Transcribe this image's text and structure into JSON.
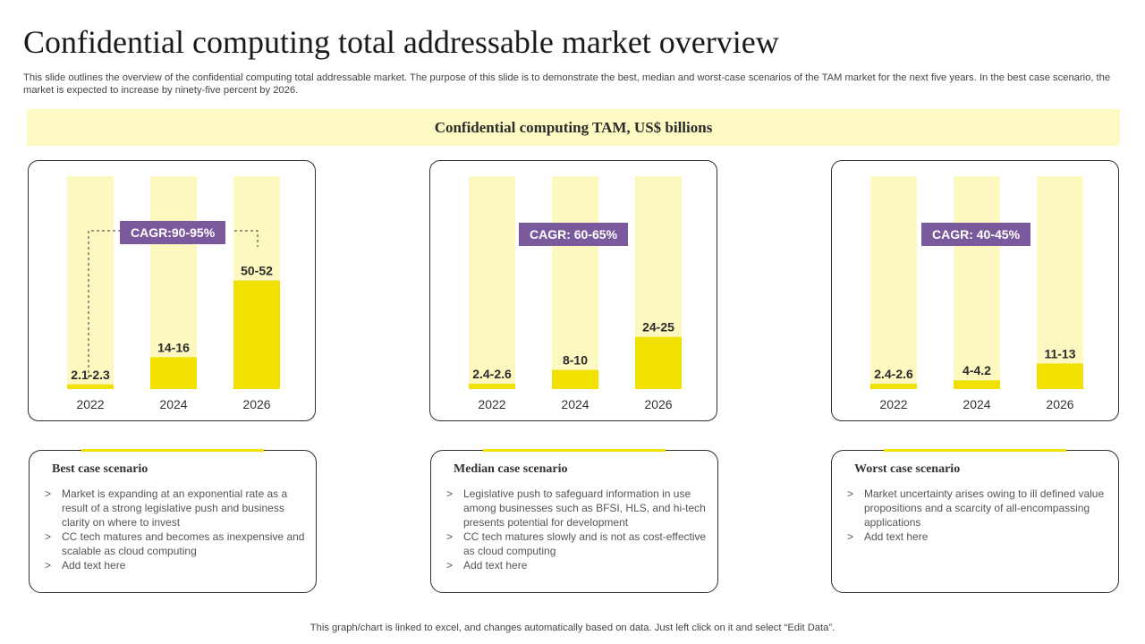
{
  "title": "Confidential computing total addressable market overview",
  "subtitle": "This slide outlines the overview of the confidential computing total addressable market. The purpose of this slide is to demonstrate the best, median and worst-case scenarios of the TAM  market for the next five years. In the best case scenario, the market is expected to increase by ninety-five percent by 2026.",
  "band_title": "Confidential computing TAM, US$ billions",
  "colors": {
    "accent": "#f0e100",
    "bar_bg": "#fdf8c0",
    "band": "#fdfac3",
    "cagr": "#7a5a9c"
  },
  "chart_data": [
    {
      "type": "bar",
      "title": "Best case scenario",
      "categories": [
        "2022",
        "2024",
        "2026"
      ],
      "values": [
        2.2,
        15,
        51
      ],
      "labels": [
        "2.1-2.3",
        "14-16",
        "50-52"
      ],
      "ylim": [
        0,
        100
      ],
      "cagr": "CAGR:90-95%"
    },
    {
      "type": "bar",
      "title": "Median case scenario",
      "categories": [
        "2022",
        "2024",
        "2026"
      ],
      "values": [
        2.5,
        9,
        24.5
      ],
      "labels": [
        "2.4-2.6",
        "8-10",
        "24-25"
      ],
      "ylim": [
        0,
        100
      ],
      "cagr": "CAGR: 60-65%"
    },
    {
      "type": "bar",
      "title": "Worst case scenario",
      "categories": [
        "2022",
        "2024",
        "2026"
      ],
      "values": [
        2.5,
        4.1,
        12
      ],
      "labels": [
        "2.4-2.6",
        "4-4.2",
        "11-13"
      ],
      "ylim": [
        0,
        100
      ],
      "cagr": "CAGR: 40-45%"
    }
  ],
  "scenarios": [
    {
      "title": "Best case scenario",
      "bullets": [
        "Market is expanding at an exponential rate as a result of a strong legislative  push and business clarity on where  to invest",
        "CC tech matures and becomes as inexpensive  and scalable as cloud computing",
        "Add text here"
      ]
    },
    {
      "title": "Median case scenario",
      "bullets": [
        "Legislative push to safeguard  information in use among businesses such as BFSI, HLS, and hi-tech presents potential for development",
        "CC tech matures slowly and is not as cost-effective  as cloud computing",
        "Add text here"
      ]
    },
    {
      "title": "Worst case scenario",
      "bullets": [
        "Market uncertainty arises owing to ill defined value propositions and a scarcity of all-encompassing applications",
        "Add text here"
      ]
    }
  ],
  "bullet_marker": ">",
  "footer": "This graph/chart is linked to excel,  and changes automatically based on data. Just left click on it and select “Edit Data”."
}
